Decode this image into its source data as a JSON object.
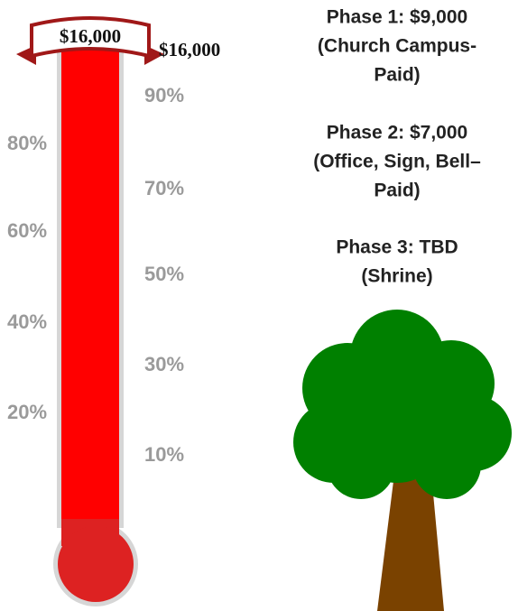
{
  "thermometer": {
    "banner_label": "$16,000",
    "goal_label": "$16,000",
    "left_labels": [
      "80%",
      "60%",
      "40%",
      "20%"
    ],
    "right_labels": [
      "90%",
      "70%",
      "50%",
      "30%",
      "10%"
    ]
  },
  "phases": [
    {
      "lines": [
        "Phase 1: $9,000",
        "(Church Campus-",
        "Paid)"
      ]
    },
    {
      "lines": [
        "Phase 2: $7,000",
        "(Office, Sign, Bell–",
        "Paid)"
      ]
    },
    {
      "lines": [
        "Phase 3: TBD",
        "(Shrine)"
      ]
    }
  ]
}
